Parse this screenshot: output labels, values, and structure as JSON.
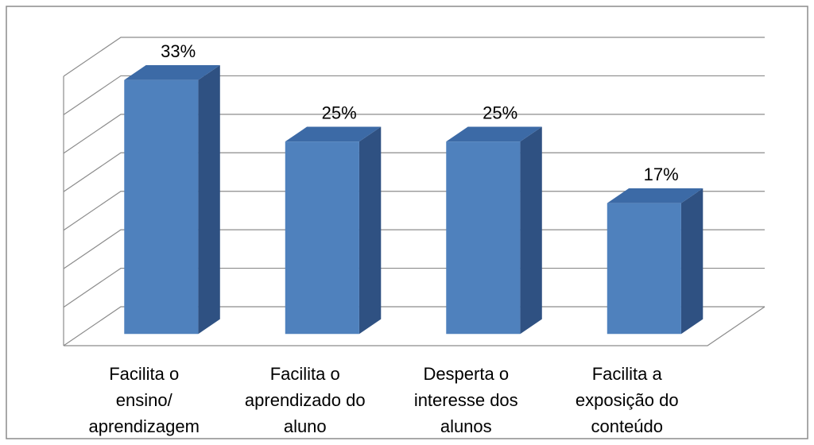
{
  "chart_data": {
    "type": "bar3d",
    "categories": [
      [
        "Facilita o",
        "ensino/",
        "aprendizagem"
      ],
      [
        "Facilita o",
        "aprendizado do",
        "aluno"
      ],
      [
        "Desperta o",
        "interesse dos",
        "alunos"
      ],
      [
        "Facilita a",
        "exposição do",
        "conteúdo"
      ]
    ],
    "values": [
      33,
      25,
      25,
      17
    ],
    "value_labels": [
      "33%",
      "25%",
      "25%",
      "17%"
    ],
    "colors": {
      "front": "#4f81bd",
      "side": "#2f5182",
      "top": "#3c6aa6"
    },
    "ylim": [
      0,
      35
    ],
    "yticks": [
      0,
      5,
      10,
      15,
      20,
      25,
      30,
      35
    ],
    "grid": true
  }
}
